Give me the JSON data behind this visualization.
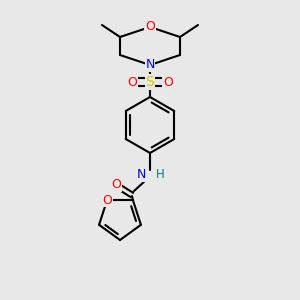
{
  "bg_color": "#e8e8e8",
  "atom_colors": {
    "O": "#ff0000",
    "N": "#0000ff",
    "S": "#cccc00",
    "C": "#000000",
    "H": "#008080"
  },
  "bond_color": "#000000"
}
